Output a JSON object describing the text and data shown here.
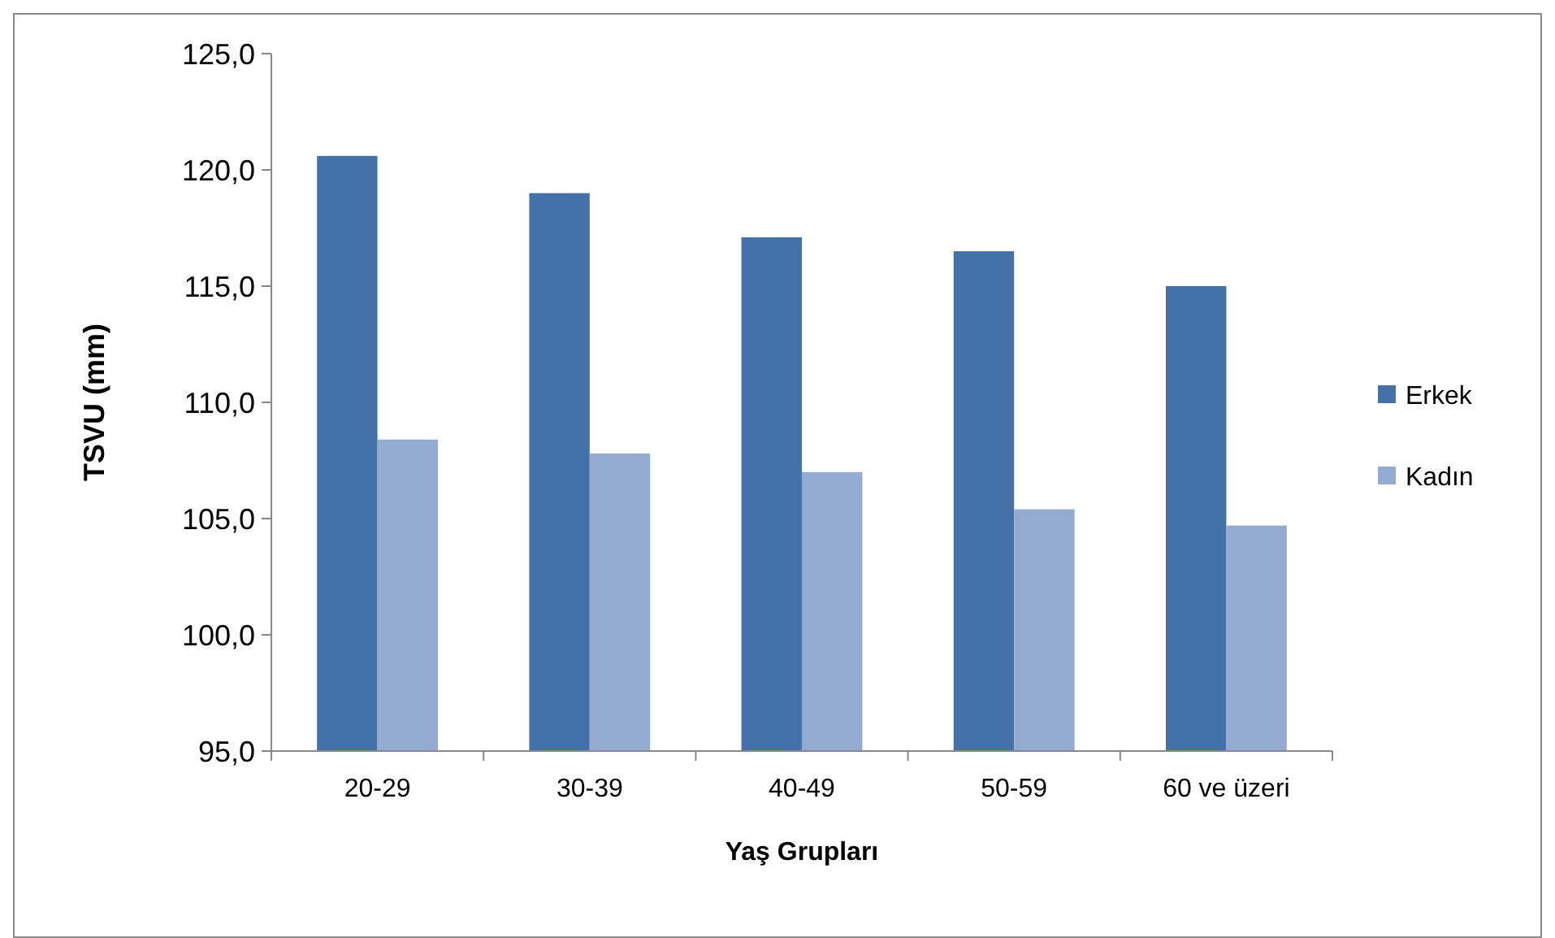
{
  "chart_data": {
    "type": "bar",
    "xlabel": "Yaş Grupları",
    "ylabel": "TSVU (mm)",
    "categories": [
      "20-29",
      "30-39",
      "40-49",
      "50-59",
      "60 ve üzeri"
    ],
    "series": [
      {
        "name": "Erkek",
        "color": "#4472a8",
        "values": [
          120.6,
          119.0,
          117.1,
          116.5,
          115.0
        ]
      },
      {
        "name": "Kadın",
        "color": "#95aad0",
        "values": [
          108.4,
          107.8,
          107.0,
          105.4,
          104.7
        ]
      }
    ],
    "ylim": [
      95,
      125
    ],
    "yticks": [
      {
        "value": 95,
        "label": "95,0"
      },
      {
        "value": 100,
        "label": "100,0"
      },
      {
        "value": 105,
        "label": "105,0"
      },
      {
        "value": 110,
        "label": "110,0"
      },
      {
        "value": 115,
        "label": "115,0"
      },
      {
        "value": 120,
        "label": "120,0"
      },
      {
        "value": 125,
        "label": "125,0"
      }
    ],
    "legend": "right"
  }
}
